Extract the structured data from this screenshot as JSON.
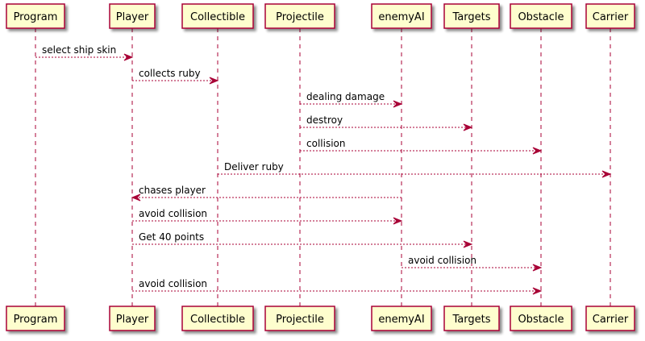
{
  "participants": [
    {
      "id": "program",
      "label": "Program"
    },
    {
      "id": "player",
      "label": "Player"
    },
    {
      "id": "collectible",
      "label": "Collectible"
    },
    {
      "id": "projectile",
      "label": "Projectile"
    },
    {
      "id": "enemyai",
      "label": "enemyAI"
    },
    {
      "id": "targets",
      "label": "Targets"
    },
    {
      "id": "obstacle",
      "label": "Obstacle"
    },
    {
      "id": "carrier",
      "label": "Carrier"
    }
  ],
  "messages": [
    {
      "from": "program",
      "to": "player",
      "label": "select ship skin"
    },
    {
      "from": "player",
      "to": "collectible",
      "label": "collects ruby"
    },
    {
      "from": "projectile",
      "to": "enemyai",
      "label": "dealing damage"
    },
    {
      "from": "projectile",
      "to": "targets",
      "label": "destroy"
    },
    {
      "from": "projectile",
      "to": "obstacle",
      "label": "collision"
    },
    {
      "from": "collectible",
      "to": "carrier",
      "label": "Deliver ruby"
    },
    {
      "from": "enemyai",
      "to": "player",
      "label": "chases player"
    },
    {
      "from": "player",
      "to": "enemyai",
      "label": "avoid collision"
    },
    {
      "from": "player",
      "to": "targets",
      "label": "Get 40 points"
    },
    {
      "from": "enemyai",
      "to": "obstacle",
      "label": "avoid collision"
    },
    {
      "from": "player",
      "to": "obstacle",
      "label": "avoid collision"
    }
  ],
  "colors": {
    "box_fill": "#FEFECE",
    "box_border": "#A80036",
    "lifeline": "#A80036",
    "arrow": "#A80036",
    "text": "#000000"
  }
}
